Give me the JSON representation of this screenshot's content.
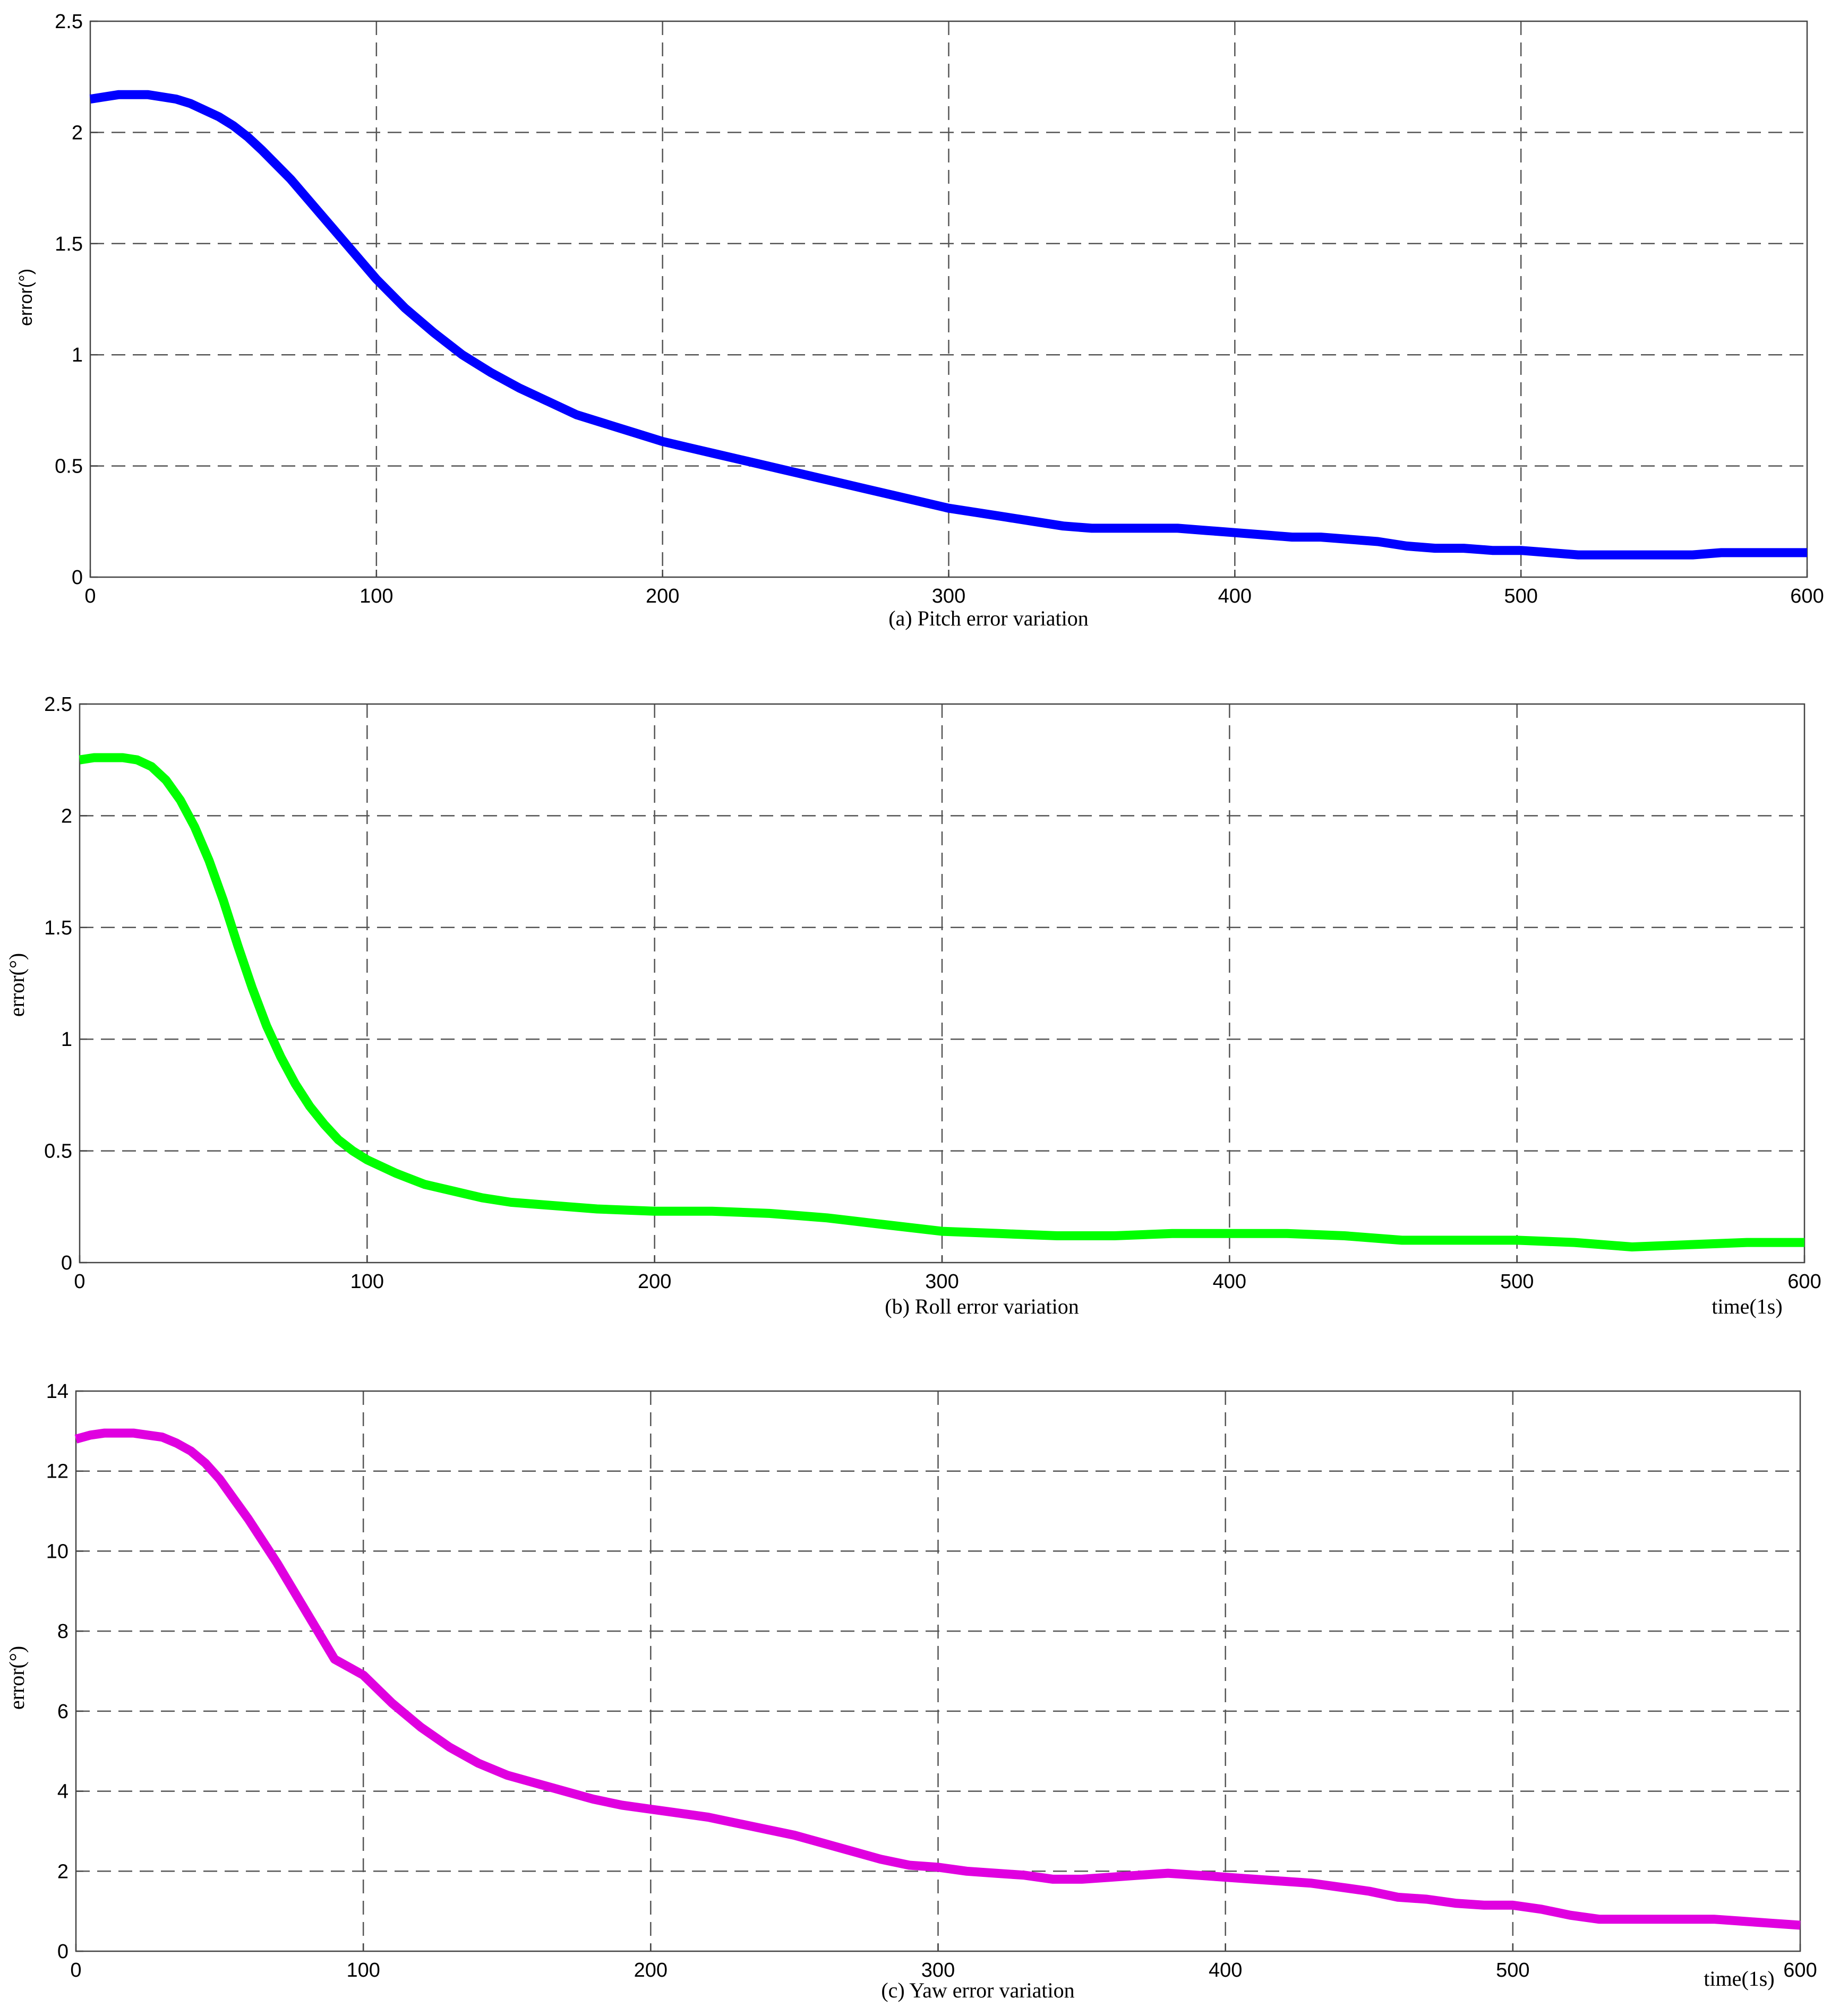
{
  "chart_data": [
    {
      "type": "line",
      "caption": "(a) Pitch error variation",
      "ylabel": "error(°)",
      "xlabel": "",
      "xlim": [
        0,
        600
      ],
      "ylim": [
        0,
        2.5
      ],
      "xticks": [
        "0",
        "100",
        "200",
        "300",
        "400",
        "500",
        "600"
      ],
      "yticks": [
        "0",
        "0.5",
        "1",
        "1.5",
        "2",
        "2.5"
      ],
      "grid": true,
      "series": [
        {
          "color": "#0000ff",
          "x": [
            0,
            5,
            10,
            15,
            20,
            25,
            30,
            35,
            40,
            45,
            50,
            55,
            60,
            70,
            80,
            90,
            100,
            110,
            120,
            130,
            140,
            150,
            160,
            170,
            180,
            190,
            200,
            210,
            220,
            230,
            240,
            250,
            260,
            270,
            280,
            290,
            300,
            310,
            320,
            330,
            340,
            350,
            360,
            370,
            380,
            390,
            400,
            410,
            420,
            430,
            440,
            450,
            460,
            470,
            480,
            490,
            500,
            510,
            520,
            530,
            540,
            550,
            560,
            570,
            580,
            590,
            600
          ],
          "values": [
            2.15,
            2.16,
            2.17,
            2.17,
            2.17,
            2.16,
            2.15,
            2.13,
            2.1,
            2.07,
            2.03,
            1.98,
            1.92,
            1.79,
            1.64,
            1.49,
            1.34,
            1.21,
            1.1,
            1.0,
            0.92,
            0.85,
            0.79,
            0.73,
            0.69,
            0.65,
            0.61,
            0.58,
            0.55,
            0.52,
            0.49,
            0.46,
            0.43,
            0.4,
            0.37,
            0.34,
            0.31,
            0.29,
            0.27,
            0.25,
            0.23,
            0.22,
            0.22,
            0.22,
            0.22,
            0.21,
            0.2,
            0.19,
            0.18,
            0.18,
            0.17,
            0.16,
            0.14,
            0.13,
            0.13,
            0.12,
            0.12,
            0.11,
            0.1,
            0.1,
            0.1,
            0.1,
            0.1,
            0.11,
            0.11,
            0.11,
            0.11
          ]
        }
      ]
    },
    {
      "type": "line",
      "caption": "(b) Roll error variation",
      "ylabel": "error(°)",
      "xlabel": "time(1s)",
      "xlim": [
        0,
        600
      ],
      "ylim": [
        0,
        2.5
      ],
      "xticks": [
        "0",
        "100",
        "200",
        "300",
        "400",
        "500",
        "600"
      ],
      "yticks": [
        "0",
        "0.5",
        "1",
        "1.5",
        "2",
        "2.5"
      ],
      "grid": true,
      "series": [
        {
          "color": "#00ff00",
          "x": [
            0,
            5,
            10,
            15,
            20,
            25,
            30,
            35,
            40,
            45,
            50,
            55,
            60,
            65,
            70,
            75,
            80,
            85,
            90,
            95,
            100,
            110,
            120,
            130,
            140,
            150,
            160,
            170,
            180,
            200,
            220,
            240,
            260,
            280,
            300,
            320,
            340,
            350,
            360,
            380,
            400,
            420,
            440,
            460,
            480,
            500,
            520,
            540,
            560,
            580,
            600
          ],
          "values": [
            2.25,
            2.26,
            2.26,
            2.26,
            2.25,
            2.22,
            2.16,
            2.07,
            1.95,
            1.8,
            1.62,
            1.42,
            1.23,
            1.06,
            0.92,
            0.8,
            0.7,
            0.62,
            0.55,
            0.5,
            0.46,
            0.4,
            0.35,
            0.32,
            0.29,
            0.27,
            0.26,
            0.25,
            0.24,
            0.23,
            0.23,
            0.22,
            0.2,
            0.17,
            0.14,
            0.13,
            0.12,
            0.12,
            0.12,
            0.13,
            0.13,
            0.13,
            0.12,
            0.1,
            0.1,
            0.1,
            0.09,
            0.07,
            0.08,
            0.09,
            0.09
          ]
        }
      ]
    },
    {
      "type": "line",
      "caption": "(c) Yaw error variation",
      "ylabel": "error(°)",
      "xlabel": "time(1s)",
      "xlim": [
        0,
        600
      ],
      "ylim": [
        0,
        14
      ],
      "xticks": [
        "0",
        "100",
        "200",
        "300",
        "400",
        "500",
        "600"
      ],
      "yticks": [
        "0",
        "2",
        "4",
        "6",
        "8",
        "10",
        "12",
        "14"
      ],
      "grid": true,
      "series": [
        {
          "color": "#e000e0",
          "x": [
            0,
            5,
            10,
            15,
            20,
            25,
            30,
            35,
            40,
            45,
            50,
            55,
            60,
            70,
            80,
            90,
            100,
            110,
            120,
            130,
            140,
            150,
            160,
            170,
            180,
            190,
            200,
            210,
            220,
            230,
            240,
            250,
            260,
            270,
            280,
            290,
            300,
            310,
            320,
            330,
            340,
            350,
            360,
            370,
            380,
            390,
            400,
            410,
            420,
            430,
            440,
            450,
            460,
            470,
            480,
            490,
            500,
            510,
            520,
            530,
            540,
            550,
            560,
            570,
            580,
            590,
            600
          ],
          "values": [
            12.8,
            12.9,
            12.95,
            12.95,
            12.95,
            12.9,
            12.85,
            12.7,
            12.5,
            12.2,
            11.8,
            11.3,
            10.8,
            9.7,
            8.5,
            7.3,
            6.9,
            6.2,
            5.6,
            5.1,
            4.7,
            4.4,
            4.2,
            4.0,
            3.8,
            3.65,
            3.55,
            3.45,
            3.35,
            3.2,
            3.05,
            2.9,
            2.7,
            2.5,
            2.3,
            2.15,
            2.1,
            2.0,
            1.95,
            1.9,
            1.8,
            1.8,
            1.85,
            1.9,
            1.95,
            1.9,
            1.85,
            1.8,
            1.75,
            1.7,
            1.6,
            1.5,
            1.35,
            1.3,
            1.2,
            1.15,
            1.15,
            1.05,
            0.9,
            0.8,
            0.8,
            0.8,
            0.8,
            0.8,
            0.75,
            0.7,
            0.65
          ]
        }
      ]
    }
  ]
}
